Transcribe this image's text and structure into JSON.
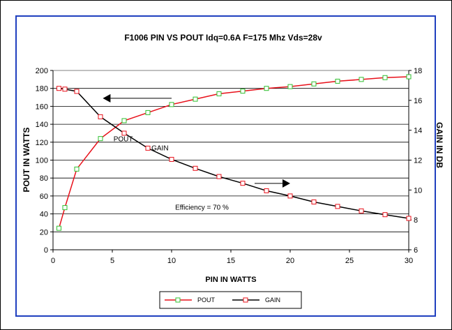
{
  "chart_data": {
    "type": "line",
    "title": "F1006 PIN VS POUT  Idq=0.6A  F=175 Mhz  Vds=28v",
    "xlabel": "PIN IN WATTS",
    "ylabel": "POUT IN WATTS",
    "y2label": "GAIN IN DB",
    "xlim": [
      0,
      30
    ],
    "ylim": [
      0,
      200
    ],
    "y2lim": [
      6,
      18
    ],
    "xticks": [
      0,
      5,
      10,
      15,
      20,
      25,
      30
    ],
    "yticks": [
      0,
      20,
      40,
      60,
      80,
      100,
      120,
      140,
      160,
      180,
      200
    ],
    "y2ticks": [
      6,
      8,
      10,
      12,
      14,
      16,
      18
    ],
    "grid": "horizontal",
    "legend_position": "bottom",
    "series": [
      {
        "name": "POUT",
        "axis": "left",
        "color": "#e8101a",
        "marker_color": "#2fbf2f",
        "x": [
          0.5,
          1,
          2,
          4,
          6,
          8,
          10,
          12,
          14,
          16,
          18,
          20,
          22,
          24,
          26,
          28,
          30
        ],
        "values": [
          24,
          47,
          90,
          124,
          144,
          153,
          162,
          168,
          174,
          177,
          180,
          182,
          185,
          188,
          190,
          192,
          193
        ]
      },
      {
        "name": "GAIN",
        "axis": "right",
        "color": "#000000",
        "marker_color": "#e8101a",
        "x": [
          0.5,
          1,
          2,
          4,
          6,
          8,
          10,
          12,
          14,
          16,
          18,
          20,
          22,
          24,
          26,
          28,
          30
        ],
        "values": [
          16.8,
          16.75,
          16.6,
          14.9,
          13.8,
          12.8,
          12.05,
          11.45,
          10.9,
          10.45,
          9.95,
          9.6,
          9.2,
          8.9,
          8.6,
          8.35,
          8.1
        ]
      }
    ],
    "annotations": [
      {
        "text": "POUT",
        "x": 5.1,
        "y": 124,
        "axis": "left"
      },
      {
        "text": "GAIN",
        "x": 8.3,
        "y": 114,
        "axis": "left"
      },
      {
        "text": "Efficiency = 70 %",
        "x": 10.3,
        "y": 48,
        "axis": "left"
      }
    ],
    "arrows": [
      {
        "direction": "left",
        "from": [
          10,
          169
        ],
        "to": [
          4.2,
          169
        ],
        "axis": "left"
      },
      {
        "direction": "right",
        "from": [
          17,
          74
        ],
        "to": [
          20,
          74
        ],
        "axis": "left"
      }
    ]
  }
}
